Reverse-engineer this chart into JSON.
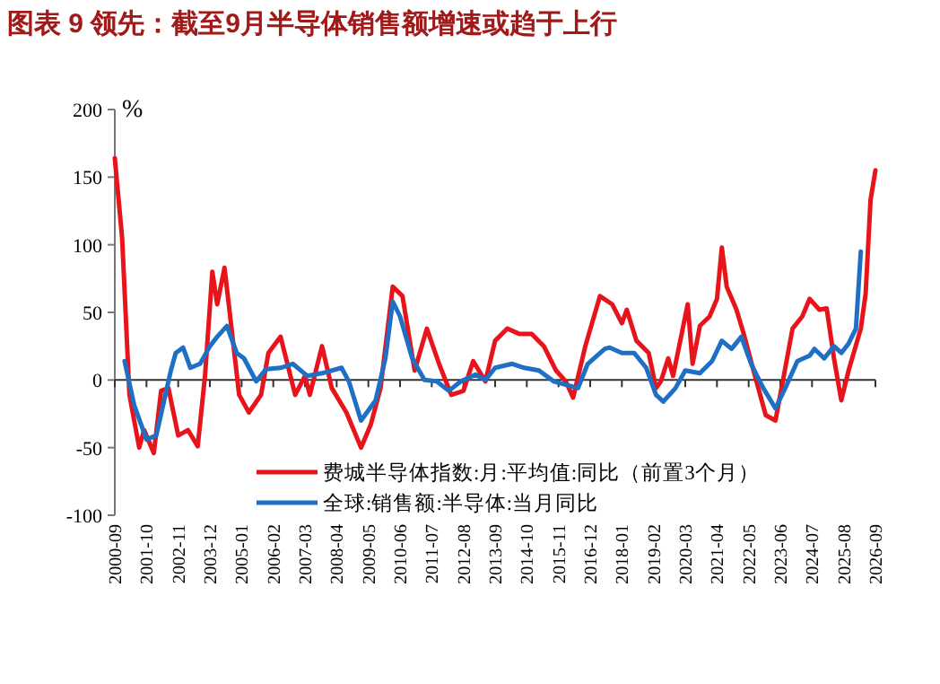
{
  "chart_data": {
    "type": "line",
    "title": "图表 9   领先：截至9月半导体销售额增速或趋于上行",
    "ylabel": "%",
    "xlim": [
      "2000-09",
      "2026-09"
    ],
    "xticks": [
      "2000-09",
      "2001-10",
      "2002-11",
      "2003-12",
      "2005-01",
      "2006-02",
      "2007-03",
      "2008-04",
      "2009-05",
      "2010-06",
      "2011-07",
      "2012-08",
      "2013-09",
      "2014-10",
      "2015-11",
      "2016-12",
      "2018-01",
      "2019-02",
      "2020-03",
      "2021-04",
      "2022-05",
      "2023-06",
      "2024-07",
      "2025-08",
      "2026-09"
    ],
    "ylim": [
      -100,
      200
    ],
    "yticks": [
      -100,
      -50,
      0,
      50,
      100,
      150,
      200
    ],
    "legend": "bottom right",
    "line_style": "solid",
    "marker": "none",
    "series": [
      {
        "name": "费城半导体指数:月:平均值:同比（前置3个月）",
        "color": "#e8141c",
        "x": [
          "2000-09",
          "2000-12",
          "2001-03",
          "2001-07",
          "2001-09",
          "2002-01",
          "2002-04",
          "2002-07",
          "2002-11",
          "2003-03",
          "2003-07",
          "2003-10",
          "2004-01",
          "2004-03",
          "2004-06",
          "2004-08",
          "2004-12",
          "2005-04",
          "2005-09",
          "2005-12",
          "2006-05",
          "2006-11",
          "2007-03",
          "2007-05",
          "2007-10",
          "2008-02",
          "2008-08",
          "2009-02",
          "2009-06",
          "2009-10",
          "2010-03",
          "2010-07",
          "2010-10",
          "2010-12",
          "2011-05",
          "2011-10",
          "2012-03",
          "2012-08",
          "2012-12",
          "2013-05",
          "2013-09",
          "2014-02",
          "2014-07",
          "2014-12",
          "2015-05",
          "2015-10",
          "2016-02",
          "2016-05",
          "2016-10",
          "2017-04",
          "2017-09",
          "2018-01",
          "2018-03",
          "2018-07",
          "2018-12",
          "2019-03",
          "2019-05",
          "2019-08",
          "2019-10",
          "2020-04",
          "2020-06",
          "2020-09",
          "2021-01",
          "2021-04",
          "2021-06",
          "2021-08",
          "2021-12",
          "2022-03",
          "2022-07",
          "2022-12",
          "2023-04",
          "2023-07",
          "2023-11",
          "2024-03",
          "2024-06",
          "2024-10",
          "2025-01",
          "2025-04",
          "2025-07",
          "2025-10",
          "2026-03",
          "2026-05",
          "2026-07",
          "2026-09"
        ],
        "values": [
          164,
          105,
          -11,
          -50,
          -37,
          -54,
          -8,
          -6,
          -41,
          -37,
          -49,
          3,
          80,
          56,
          83,
          52,
          -11,
          -24,
          -11,
          20,
          32,
          -11,
          3,
          -11,
          25,
          -6,
          -24,
          -50,
          -33,
          -6,
          69,
          62,
          29,
          7,
          38,
          12,
          -11,
          -8,
          14,
          -1,
          29,
          38,
          34,
          34,
          25,
          7,
          -1,
          -13,
          25,
          62,
          56,
          42,
          52,
          29,
          20,
          -6,
          -1,
          16,
          3,
          56,
          12,
          40,
          47,
          60,
          98,
          69,
          52,
          34,
          7,
          -26,
          -30,
          -1,
          38,
          47,
          60,
          52,
          53,
          16,
          -15,
          7,
          38,
          64,
          133,
          155
        ]
      },
      {
        "name": "全球:销售额:半导体:当月同比",
        "color": "#1f6fc5",
        "x": [
          "2001-01",
          "2001-05",
          "2001-10",
          "2002-02",
          "2002-08",
          "2002-10",
          "2003-01",
          "2003-04",
          "2003-08",
          "2003-12",
          "2004-03",
          "2004-07",
          "2004-11",
          "2005-02",
          "2005-07",
          "2005-11",
          "2006-05",
          "2006-10",
          "2007-04",
          "2007-10",
          "2008-06",
          "2008-09",
          "2009-02",
          "2009-08",
          "2009-12",
          "2010-03",
          "2010-06",
          "2010-11",
          "2011-04",
          "2011-09",
          "2012-02",
          "2012-07",
          "2013-01",
          "2013-05",
          "2013-09",
          "2014-04",
          "2014-09",
          "2015-03",
          "2015-09",
          "2016-03",
          "2016-07",
          "2016-11",
          "2017-06",
          "2017-08",
          "2018-01",
          "2018-06",
          "2018-11",
          "2019-03",
          "2019-06",
          "2019-11",
          "2020-03",
          "2020-09",
          "2021-02",
          "2021-06",
          "2021-10",
          "2022-02",
          "2022-06",
          "2022-11",
          "2023-04",
          "2023-08",
          "2024-01",
          "2024-06",
          "2024-08",
          "2024-12",
          "2025-04",
          "2025-07",
          "2025-10",
          "2026-01",
          "2026-03"
        ],
        "values": [
          14,
          -19,
          -44,
          -41,
          7,
          20,
          24,
          9,
          12,
          25,
          32,
          40,
          20,
          16,
          -1,
          8,
          9,
          12,
          3,
          5,
          9,
          -1,
          -30,
          -15,
          16,
          58,
          47,
          16,
          0,
          -1,
          -8,
          -1,
          4,
          0,
          9,
          12,
          9,
          7,
          -1,
          -4,
          -6,
          12,
          23,
          24,
          20,
          20,
          9,
          -11,
          -16,
          -6,
          7,
          5,
          14,
          29,
          23,
          32,
          12,
          -6,
          -21,
          -6,
          14,
          18,
          23,
          16,
          25,
          20,
          27,
          38,
          95
        ]
      }
    ]
  }
}
